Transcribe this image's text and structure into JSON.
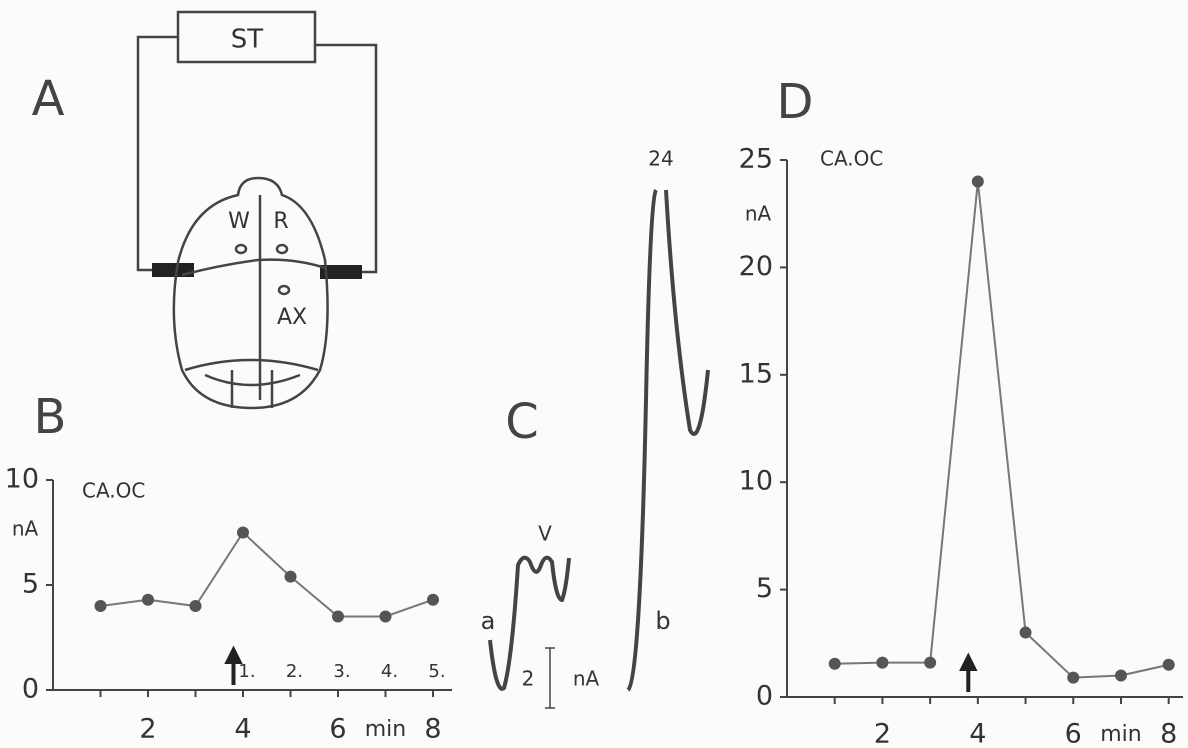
{
  "panels": {
    "A": {
      "label": "A",
      "stimulator": "ST",
      "sites": [
        "W",
        "R",
        "AX"
      ]
    },
    "C": {
      "label": "C",
      "trace_labels": [
        "a",
        "b"
      ],
      "peak_label": "V",
      "max_label": "24",
      "scale_value": "2",
      "scale_unit": "nA"
    }
  },
  "chart_data": [
    {
      "type": "line",
      "panel_label": "B",
      "x": [
        1,
        2,
        3,
        4,
        5,
        6,
        7,
        8
      ],
      "series": [
        {
          "name": "CA.OC",
          "color": "#555555",
          "values": [
            4.0,
            4.3,
            4.0,
            7.5,
            5.4,
            3.5,
            3.5,
            4.3
          ]
        }
      ],
      "xlim": [
        0,
        8.4
      ],
      "ylim": [
        0,
        10
      ],
      "xticks": [
        2,
        4,
        6,
        8
      ],
      "yticks": [
        0,
        5,
        10
      ],
      "x_label": "min",
      "y_label": "nA",
      "stimulus": 3.8,
      "annotations": [
        "1.",
        "2.",
        "3.",
        "4.",
        "5."
      ]
    },
    {
      "type": "line",
      "panel_label": "D",
      "x": [
        1,
        2,
        3,
        4,
        5,
        6,
        7,
        8
      ],
      "series": [
        {
          "name": "CA.OC",
          "color": "#555555",
          "values": [
            1.55,
            1.6,
            1.6,
            24,
            3.0,
            0.9,
            1.0,
            1.5
          ]
        }
      ],
      "xlim": [
        0,
        8.3
      ],
      "ylim": [
        0,
        25
      ],
      "xticks": [
        2,
        4,
        6,
        8
      ],
      "yticks": [
        0,
        5,
        10,
        15,
        20,
        25
      ],
      "x_label": "min",
      "y_label": "nA",
      "stimulus": 3.8
    }
  ]
}
